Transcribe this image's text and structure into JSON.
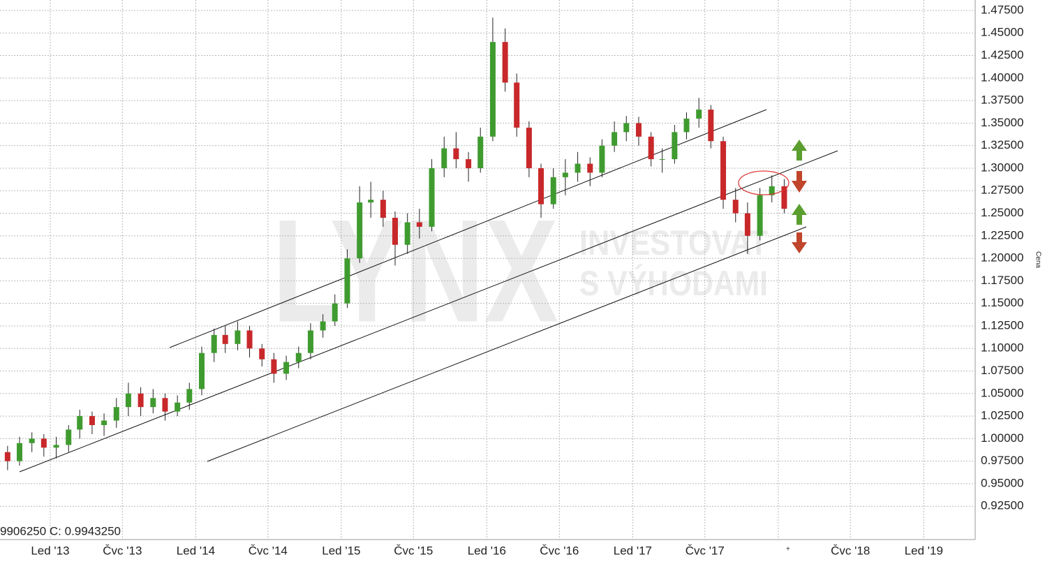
{
  "chart_data": {
    "type": "candlestick",
    "y_label": "Cena",
    "status": "9906250  C: 0.9943250",
    "up_color": "#3f9b2f",
    "down_color": "#c8282a",
    "xlim": [
      "2012-08-28",
      "2019-05-10"
    ],
    "ylim": [
      0.888,
      1.4866
    ],
    "xticks": [
      {
        "value": "2013-01",
        "label": "Led '13"
      },
      {
        "value": "2013-07",
        "label": "Čvc '13"
      },
      {
        "value": "2014-01",
        "label": "Led '14"
      },
      {
        "value": "2014-07",
        "label": "Čvc '14"
      },
      {
        "value": "2015-01",
        "label": "Led '15"
      },
      {
        "value": "2015-07",
        "label": "Čvc '15"
      },
      {
        "value": "2016-01",
        "label": "Led '16"
      },
      {
        "value": "2016-07",
        "label": "Čvc '16"
      },
      {
        "value": "2017-01",
        "label": "Led '17"
      },
      {
        "value": "2017-07",
        "label": "Čvc '17"
      },
      {
        "value": "2018-01",
        "label": null
      },
      {
        "value": "2018-07",
        "label": "Čvc '18"
      },
      {
        "value": "2019-01",
        "label": "Led '19"
      }
    ],
    "yticks": [
      {
        "value": 0.925,
        "label": "0.92500"
      },
      {
        "value": 0.95,
        "label": "0.95000"
      },
      {
        "value": 0.975,
        "label": "0.97500"
      },
      {
        "value": 1.0,
        "label": "1.00000"
      },
      {
        "value": 1.025,
        "label": "1.02500"
      },
      {
        "value": 1.05,
        "label": "1.05000"
      },
      {
        "value": 1.075,
        "label": "1.07500"
      },
      {
        "value": 1.1,
        "label": "1.10000"
      },
      {
        "value": 1.125,
        "label": "1.12500"
      },
      {
        "value": 1.15,
        "label": "1.15000"
      },
      {
        "value": 1.175,
        "label": "1.17500"
      },
      {
        "value": 1.2,
        "label": "1.20000"
      },
      {
        "value": 1.225,
        "label": "1.22500"
      },
      {
        "value": 1.25,
        "label": "1.25000"
      },
      {
        "value": 1.275,
        "label": "1.27500"
      },
      {
        "value": 1.3,
        "label": "1.30000"
      },
      {
        "value": 1.325,
        "label": "1.32500"
      },
      {
        "value": 1.35,
        "label": "1.35000"
      },
      {
        "value": 1.375,
        "label": "1.37500"
      },
      {
        "value": 1.4,
        "label": "1.40000"
      },
      {
        "value": 1.425,
        "label": "1.42500"
      },
      {
        "value": 1.45,
        "label": "1.45000"
      },
      {
        "value": 1.475,
        "label": "1.47500"
      }
    ],
    "grid": true,
    "x": [
      "2012-09",
      "2012-10",
      "2012-11",
      "2012-12",
      "2013-01",
      "2013-02",
      "2013-03",
      "2013-04",
      "2013-05",
      "2013-06",
      "2013-07",
      "2013-08",
      "2013-09",
      "2013-10",
      "2013-11",
      "2013-12",
      "2014-01",
      "2014-02",
      "2014-03",
      "2014-04",
      "2014-05",
      "2014-06",
      "2014-07",
      "2014-08",
      "2014-09",
      "2014-10",
      "2014-11",
      "2014-12",
      "2015-01",
      "2015-02",
      "2015-03",
      "2015-04",
      "2015-05",
      "2015-06",
      "2015-07",
      "2015-08",
      "2015-09",
      "2015-10",
      "2015-11",
      "2015-12",
      "2016-01",
      "2016-02",
      "2016-03",
      "2016-04",
      "2016-05",
      "2016-06",
      "2016-07",
      "2016-08",
      "2016-09",
      "2016-10",
      "2016-11",
      "2016-12",
      "2017-01",
      "2017-02",
      "2017-03",
      "2017-04",
      "2017-05",
      "2017-06",
      "2017-07",
      "2017-08",
      "2017-09",
      "2017-10",
      "2017-11",
      "2017-12",
      "2018-01"
    ],
    "open": [
      0.985,
      0.975,
      0.995,
      1.0,
      0.99,
      0.993,
      1.01,
      1.025,
      1.015,
      1.02,
      1.035,
      1.05,
      1.035,
      1.045,
      1.03,
      1.04,
      1.055,
      1.095,
      1.115,
      1.105,
      1.12,
      1.1,
      1.088,
      1.072,
      1.085,
      1.095,
      1.12,
      1.13,
      1.15,
      1.2,
      1.262,
      1.265,
      1.245,
      1.215,
      1.24,
      1.235,
      1.3,
      1.322,
      1.31,
      1.3,
      1.335,
      1.44,
      1.395,
      1.345,
      1.3,
      1.26,
      1.29,
      1.295,
      1.305,
      1.295,
      1.325,
      1.34,
      1.35,
      1.335,
      1.31,
      1.31,
      1.34,
      1.355,
      1.365,
      1.33,
      1.265,
      1.25,
      1.225,
      1.27,
      1.28
    ],
    "high": [
      0.992,
      1.002,
      1.007,
      1.005,
      1.002,
      1.015,
      1.032,
      1.03,
      1.028,
      1.045,
      1.062,
      1.057,
      1.055,
      1.05,
      1.048,
      1.062,
      1.102,
      1.122,
      1.125,
      1.13,
      1.125,
      1.105,
      1.095,
      1.092,
      1.102,
      1.128,
      1.138,
      1.16,
      1.21,
      1.28,
      1.285,
      1.275,
      1.252,
      1.25,
      1.255,
      1.31,
      1.335,
      1.34,
      1.318,
      1.345,
      1.467,
      1.455,
      1.405,
      1.352,
      1.305,
      1.3,
      1.31,
      1.318,
      1.312,
      1.332,
      1.352,
      1.358,
      1.357,
      1.34,
      1.322,
      1.348,
      1.362,
      1.378,
      1.37,
      1.335,
      1.278,
      1.262,
      1.278,
      1.292,
      1.288
    ],
    "low": [
      0.965,
      0.97,
      0.985,
      0.98,
      0.978,
      0.985,
      1.0,
      1.005,
      1.003,
      1.012,
      1.025,
      1.025,
      1.028,
      1.02,
      1.025,
      1.032,
      1.048,
      1.085,
      1.095,
      1.098,
      1.09,
      1.08,
      1.062,
      1.065,
      1.078,
      1.088,
      1.112,
      1.125,
      1.145,
      1.195,
      1.245,
      1.235,
      1.192,
      1.205,
      1.222,
      1.23,
      1.29,
      1.3,
      1.285,
      1.295,
      1.33,
      1.385,
      1.335,
      1.29,
      1.245,
      1.255,
      1.27,
      1.285,
      1.28,
      1.29,
      1.318,
      1.33,
      1.325,
      1.302,
      1.295,
      1.305,
      1.332,
      1.345,
      1.322,
      1.255,
      1.24,
      1.205,
      1.22,
      1.262,
      1.25
    ],
    "close": [
      0.975,
      0.995,
      1.0,
      0.99,
      0.993,
      1.01,
      1.025,
      1.015,
      1.02,
      1.035,
      1.05,
      1.035,
      1.045,
      1.03,
      1.04,
      1.055,
      1.095,
      1.115,
      1.105,
      1.12,
      1.1,
      1.088,
      1.072,
      1.085,
      1.095,
      1.12,
      1.13,
      1.15,
      1.2,
      1.262,
      1.265,
      1.245,
      1.215,
      1.24,
      1.235,
      1.3,
      1.322,
      1.31,
      1.3,
      1.335,
      1.44,
      1.395,
      1.345,
      1.3,
      1.26,
      1.29,
      1.295,
      1.305,
      1.295,
      1.325,
      1.34,
      1.35,
      1.335,
      1.31,
      1.31,
      1.34,
      1.355,
      1.365,
      1.33,
      1.265,
      1.25,
      1.225,
      1.27,
      1.28,
      1.255
    ]
  },
  "watermark": {
    "logo": "LYNX",
    "line1": "INVESTOVAT",
    "line2": "S VÝHODAMI"
  }
}
